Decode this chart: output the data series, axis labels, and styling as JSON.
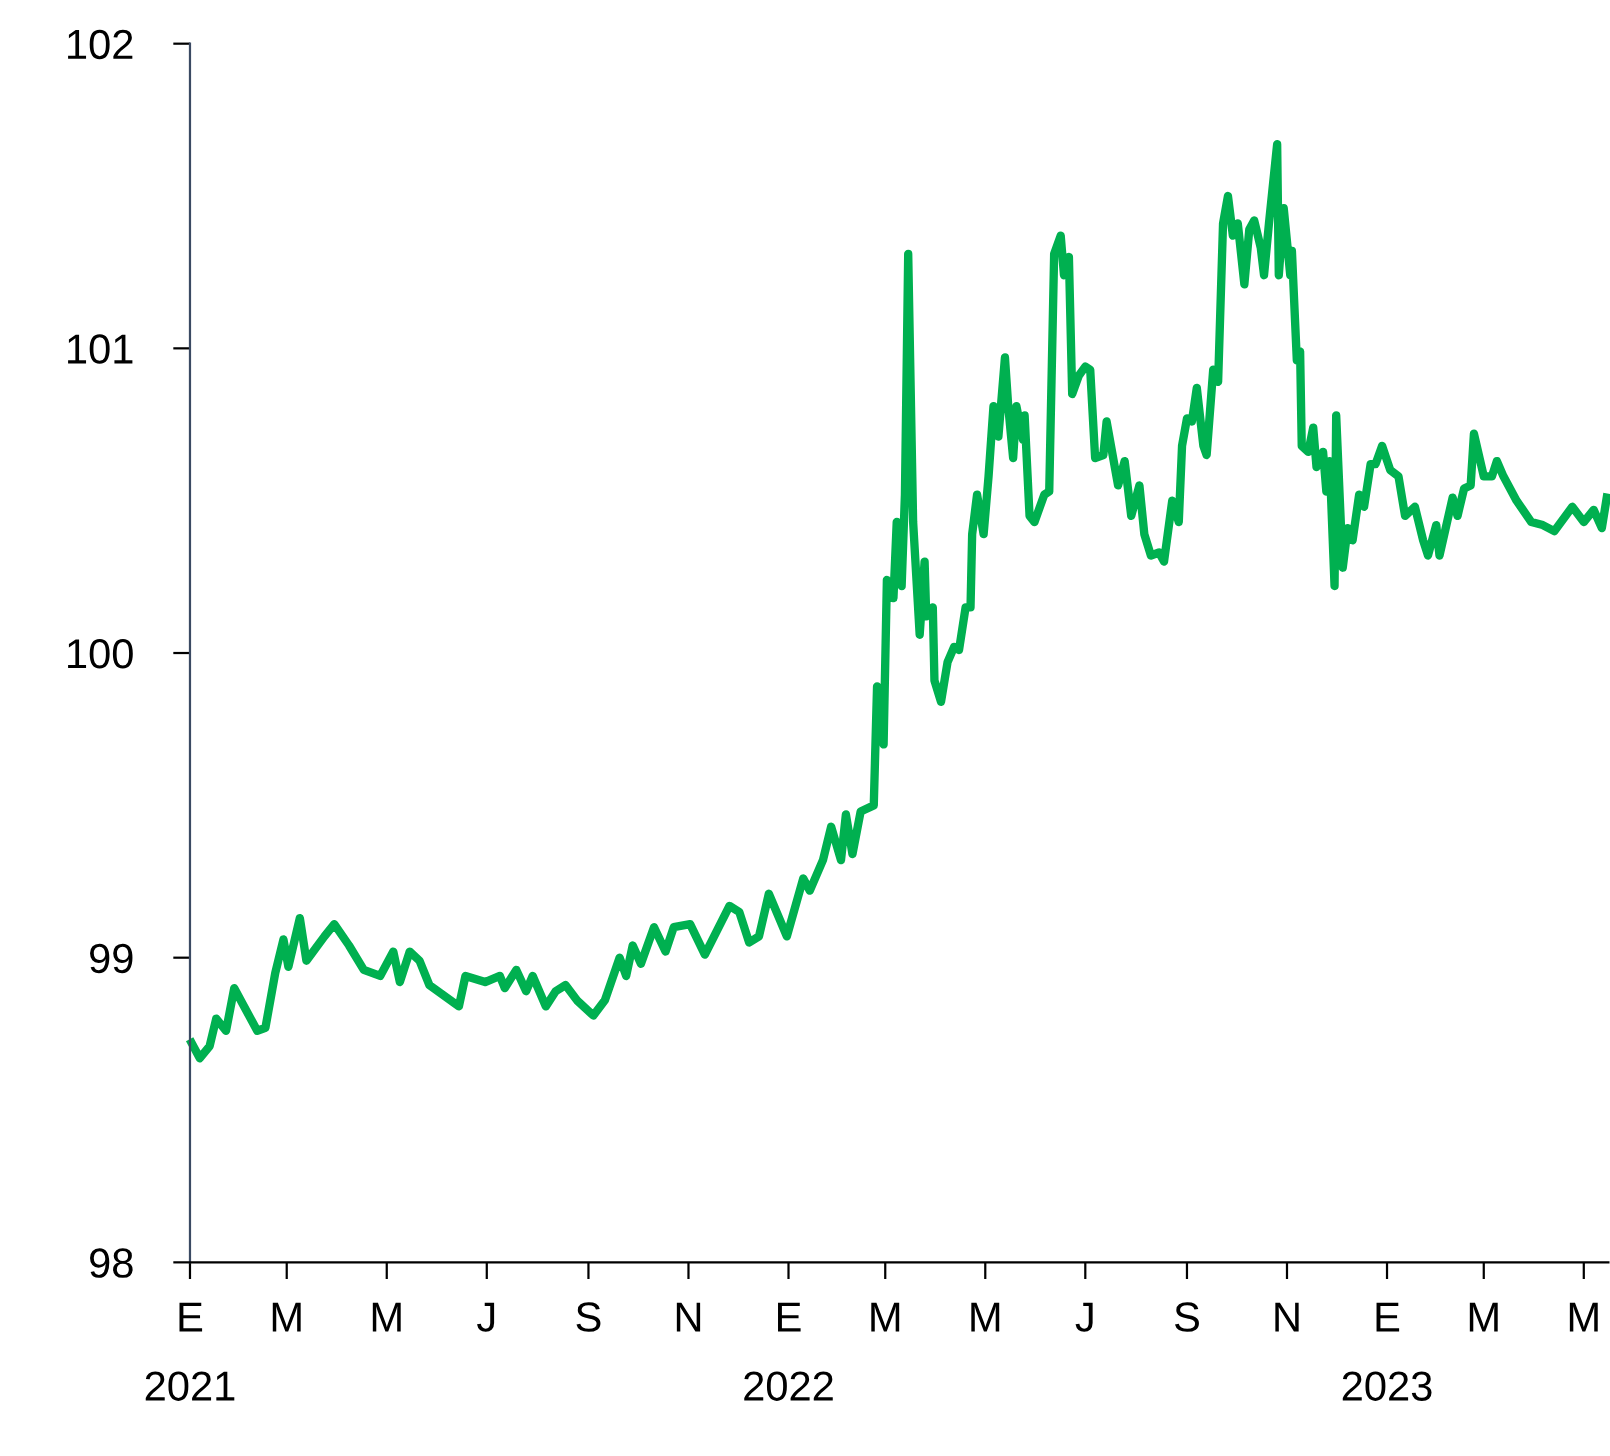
{
  "chart_data": {
    "type": "line",
    "color": "#00b050",
    "marker": "none",
    "line_style": "solid",
    "grid": false,
    "legend": false,
    "xlim": [
      "2021-01-01",
      "2023-05-16"
    ],
    "ylim": [
      98,
      102
    ],
    "yticks": [
      98,
      99,
      100,
      101,
      102
    ],
    "xticks": [
      {
        "value": "2021-01-01",
        "label": "E\n2021"
      },
      {
        "value": "2021-03-01",
        "label": "M"
      },
      {
        "value": "2021-05-01",
        "label": "M"
      },
      {
        "value": "2021-07-01",
        "label": "J"
      },
      {
        "value": "2021-09-01",
        "label": "S"
      },
      {
        "value": "2021-11-01",
        "label": "N"
      },
      {
        "value": "2022-01-01",
        "label": "E\n2022"
      },
      {
        "value": "2022-03-01",
        "label": "M"
      },
      {
        "value": "2022-05-01",
        "label": "M"
      },
      {
        "value": "2022-07-01",
        "label": "J"
      },
      {
        "value": "2022-09-01",
        "label": "S"
      },
      {
        "value": "2022-11-01",
        "label": "N"
      },
      {
        "value": "2023-01-01",
        "label": "E\n2023"
      },
      {
        "value": "2023-03-01",
        "label": "M"
      },
      {
        "value": "2023-05-01",
        "label": "M"
      }
    ],
    "x": [
      "2021-01-02",
      "2021-01-07",
      "2021-01-13",
      "2021-01-17",
      "2021-01-23",
      "2021-01-28",
      "2021-02-03",
      "2021-02-11",
      "2021-02-16",
      "2021-02-22",
      "2021-02-27",
      "2021-03-02",
      "2021-03-09",
      "2021-03-13",
      "2021-03-24",
      "2021-03-30",
      "2021-04-08",
      "2021-04-17",
      "2021-04-27",
      "2021-05-05",
      "2021-05-09",
      "2021-05-15",
      "2021-05-21",
      "2021-05-27",
      "2021-06-14",
      "2021-06-18",
      "2021-06-30",
      "2021-07-09",
      "2021-07-12",
      "2021-07-19",
      "2021-07-25",
      "2021-07-29",
      "2021-08-06",
      "2021-08-12",
      "2021-08-18",
      "2021-08-25",
      "2021-09-04",
      "2021-09-11",
      "2021-09-20",
      "2021-09-24",
      "2021-09-28",
      "2021-10-03",
      "2021-10-11",
      "2021-10-18",
      "2021-10-23",
      "2021-11-02",
      "2021-11-11",
      "2021-11-26",
      "2021-12-02",
      "2021-12-08",
      "2021-12-14",
      "2021-12-20",
      "2021-12-31",
      "2022-01-10",
      "2022-01-14",
      "2022-01-22",
      "2022-01-27",
      "2022-02-02",
      "2022-02-05",
      "2022-02-09",
      "2022-02-14",
      "2022-02-22",
      "2022-02-24",
      "2022-02-28",
      "2022-03-02",
      "2022-03-06",
      "2022-03-08",
      "2022-03-11",
      "2022-03-13",
      "2022-03-15",
      "2022-03-18",
      "2022-03-22",
      "2022-03-25",
      "2022-03-26",
      "2022-03-30",
      "2022-03-31",
      "2022-04-04",
      "2022-04-08",
      "2022-04-12",
      "2022-04-15",
      "2022-04-19",
      "2022-04-22",
      "2022-04-23",
      "2022-04-26",
      "2022-04-30",
      "2022-05-03",
      "2022-05-06",
      "2022-05-09",
      "2022-05-13",
      "2022-05-15",
      "2022-05-18",
      "2022-05-20",
      "2022-05-24",
      "2022-05-25",
      "2022-05-28",
      "2022-05-31",
      "2022-06-06",
      "2022-06-09",
      "2022-06-12",
      "2022-06-16",
      "2022-06-18",
      "2022-06-21",
      "2022-06-23",
      "2022-06-27",
      "2022-07-01",
      "2022-07-04",
      "2022-07-07",
      "2022-07-12",
      "2022-07-14",
      "2022-07-16",
      "2022-07-21",
      "2022-07-25",
      "2022-07-29",
      "2022-08-03",
      "2022-08-06",
      "2022-08-10",
      "2022-08-15",
      "2022-08-18",
      "2022-08-23",
      "2022-08-27",
      "2022-08-29",
      "2022-09-01",
      "2022-09-04",
      "2022-09-07",
      "2022-09-11",
      "2022-09-13",
      "2022-09-17",
      "2022-09-20",
      "2022-09-23",
      "2022-09-26",
      "2022-09-29",
      "2022-10-02",
      "2022-10-06",
      "2022-10-09",
      "2022-10-12",
      "2022-10-16",
      "2022-10-18",
      "2022-10-21",
      "2022-10-26",
      "2022-10-27",
      "2022-10-30",
      "2022-11-03",
      "2022-11-04",
      "2022-11-07",
      "2022-11-09",
      "2022-11-10",
      "2022-11-14",
      "2022-11-17",
      "2022-11-19",
      "2022-11-23",
      "2022-11-25",
      "2022-11-27",
      "2022-11-30",
      "2022-12-01",
      "2022-12-05",
      "2022-12-08",
      "2022-12-11",
      "2022-12-15",
      "2022-12-18",
      "2022-12-22",
      "2022-12-25",
      "2022-12-29",
      "2023-01-03",
      "2023-01-08",
      "2023-01-12",
      "2023-01-18",
      "2023-01-23",
      "2023-01-26",
      "2023-01-31",
      "2023-02-02",
      "2023-02-10",
      "2023-02-13",
      "2023-02-17",
      "2023-02-21",
      "2023-02-23",
      "2023-03-01",
      "2023-03-06",
      "2023-03-09",
      "2023-03-13",
      "2023-03-21",
      "2023-03-30",
      "2023-04-06",
      "2023-04-13",
      "2023-04-24",
      "2023-05-01",
      "2023-05-07",
      "2023-05-12",
      "2023-05-15"
    ],
    "values": [
      98.72,
      98.67,
      98.71,
      98.8,
      98.76,
      98.9,
      98.84,
      98.76,
      98.77,
      98.95,
      99.06,
      98.97,
      99.13,
      98.99,
      99.07,
      99.11,
      99.04,
      98.96,
      98.94,
      99.02,
      98.92,
      99.02,
      98.99,
      98.91,
      98.84,
      98.94,
      98.92,
      98.94,
      98.9,
      98.96,
      98.89,
      98.94,
      98.84,
      98.89,
      98.91,
      98.86,
      98.81,
      98.86,
      99.0,
      98.94,
      99.04,
      98.98,
      99.1,
      99.02,
      99.1,
      99.11,
      99.01,
      99.17,
      99.15,
      99.05,
      99.07,
      99.21,
      99.07,
      99.26,
      99.22,
      99.32,
      99.43,
      99.32,
      99.47,
      99.34,
      99.48,
      99.5,
      99.89,
      99.7,
      100.24,
      100.18,
      100.43,
      100.22,
      100.52,
      101.31,
      100.43,
      100.06,
      100.3,
      100.12,
      100.15,
      99.91,
      99.84,
      99.97,
      100.02,
      100.01,
      100.15,
      100.15,
      100.39,
      100.52,
      100.39,
      100.58,
      100.81,
      100.71,
      100.97,
      100.81,
      100.64,
      100.81,
      100.7,
      100.78,
      100.45,
      100.43,
      100.52,
      100.53,
      101.31,
      101.37,
      101.24,
      101.3,
      100.85,
      100.91,
      100.94,
      100.93,
      100.64,
      100.65,
      100.76,
      100.7,
      100.55,
      100.63,
      100.45,
      100.55,
      100.39,
      100.32,
      100.33,
      100.3,
      100.5,
      100.43,
      100.68,
      100.77,
      100.76,
      100.87,
      100.68,
      100.65,
      100.93,
      100.89,
      101.41,
      101.5,
      101.37,
      101.41,
      101.21,
      101.39,
      101.42,
      101.33,
      101.24,
      101.41,
      101.67,
      101.24,
      101.46,
      101.24,
      101.32,
      100.96,
      100.99,
      100.68,
      100.66,
      100.74,
      100.61,
      100.66,
      100.53,
      100.63,
      100.22,
      100.78,
      100.28,
      100.41,
      100.37,
      100.52,
      100.48,
      100.62,
      100.62,
      100.68,
      100.6,
      100.58,
      100.45,
      100.48,
      100.37,
      100.32,
      100.42,
      100.32,
      100.51,
      100.45,
      100.54,
      100.55,
      100.72,
      100.58,
      100.58,
      100.63,
      100.58,
      100.5,
      100.43,
      100.42,
      100.4,
      100.48,
      100.43,
      100.47,
      100.41,
      100.51
    ]
  }
}
